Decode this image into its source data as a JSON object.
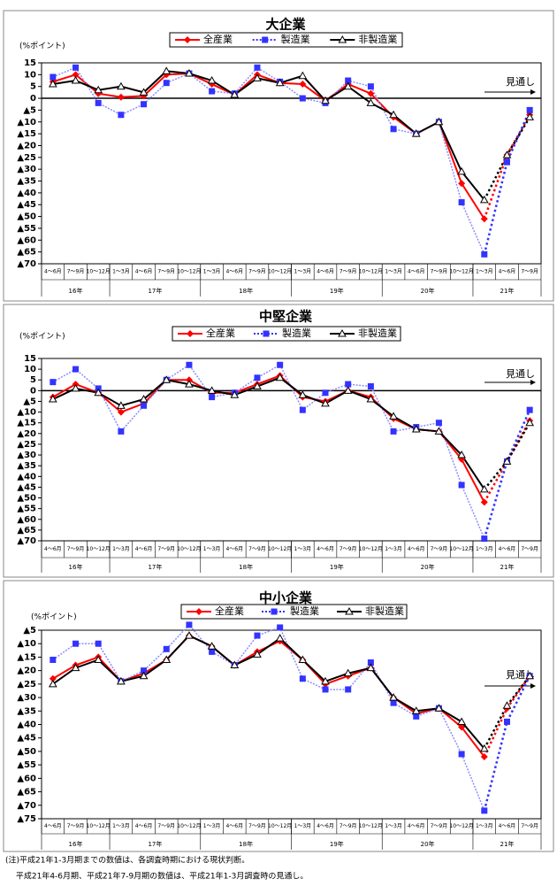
{
  "chart_data": [
    {
      "type": "line",
      "title": "大企業",
      "y_label": "(%ポイント)",
      "annotation": "見通し",
      "dashed_from_index": 19,
      "categories": [
        "4～6月",
        "7～9月",
        "10～12月",
        "1～3月",
        "4～6月",
        "7～9月",
        "10～12月",
        "1～3月",
        "4～6月",
        "7～9月",
        "10～12月",
        "1～3月",
        "4～6月",
        "7～9月",
        "10～12月",
        "1～3月",
        "4～6月",
        "7～9月",
        "10～12月",
        "1～3月",
        "4～6月",
        "7～9月"
      ],
      "year_groups": [
        {
          "label": "16年",
          "count": 3
        },
        {
          "label": "17年",
          "count": 4
        },
        {
          "label": "18年",
          "count": 4
        },
        {
          "label": "19年",
          "count": 4
        },
        {
          "label": "20年",
          "count": 4
        },
        {
          "label": "21年",
          "count": 3
        }
      ],
      "series": [
        {
          "name": "全産業",
          "color": "#ff0000",
          "marker": "diamond",
          "line_style": "solid",
          "values": [
            7,
            10,
            2,
            0.5,
            1,
            10,
            10.5,
            6,
            1.5,
            10,
            6.5,
            6,
            -1,
            6,
            2,
            -8,
            -15,
            -10,
            -36,
            -51,
            -24,
            -7
          ]
        },
        {
          "name": "製造業",
          "color": "#3333ff",
          "marker": "square",
          "line_style": "dotted",
          "values": [
            9,
            13,
            -2,
            -7,
            -2.5,
            6.5,
            10.5,
            3,
            2,
            13,
            7,
            0,
            -2,
            7.5,
            5,
            -13,
            -15,
            -10,
            -44,
            -66,
            -27,
            -5
          ]
        },
        {
          "name": "非製造業",
          "color": "#000000",
          "marker": "triangle",
          "line_style": "solid",
          "values": [
            6,
            7.5,
            3.5,
            5,
            2.5,
            11.5,
            10.5,
            7.5,
            1.5,
            8.5,
            6.5,
            9.5,
            -1,
            5,
            -2,
            -7,
            -15,
            -10,
            -31,
            -43,
            -24,
            -8
          ]
        }
      ],
      "ylim": [
        -70,
        15
      ],
      "yticks": [
        15,
        10,
        5,
        0,
        {
          "value": -5,
          "label": "▲5"
        },
        {
          "value": -10,
          "label": "▲10"
        },
        {
          "value": -15,
          "label": "▲15"
        },
        {
          "value": -20,
          "label": "▲20"
        },
        {
          "value": -25,
          "label": "▲25"
        },
        {
          "value": -30,
          "label": "▲30"
        },
        {
          "value": -35,
          "label": "▲35"
        },
        {
          "value": -40,
          "label": "▲40"
        },
        {
          "value": -45,
          "label": "▲45"
        },
        {
          "value": -50,
          "label": "▲50"
        },
        {
          "value": -55,
          "label": "▲55"
        },
        {
          "value": -60,
          "label": "▲60"
        },
        {
          "value": -65,
          "label": "▲65"
        },
        {
          "value": -70,
          "label": "▲70"
        }
      ]
    },
    {
      "type": "line",
      "title": "中堅企業",
      "y_label": "(%ポイント)",
      "annotation": "見通し",
      "dashed_from_index": 19,
      "categories": [
        "4～6月",
        "7～9月",
        "10～12月",
        "1～3月",
        "4～6月",
        "7～9月",
        "10～12月",
        "1～3月",
        "4～6月",
        "7～9月",
        "10～12月",
        "1～3月",
        "4～6月",
        "7～9月",
        "10～12月",
        "1～3月",
        "4～6月",
        "7～9月",
        "10～12月",
        "1～3月",
        "4～6月",
        "7～9月"
      ],
      "year_groups": [
        {
          "label": "16年",
          "count": 3
        },
        {
          "label": "17年",
          "count": 4
        },
        {
          "label": "18年",
          "count": 4
        },
        {
          "label": "19年",
          "count": 4
        },
        {
          "label": "20年",
          "count": 4
        },
        {
          "label": "21年",
          "count": 3
        }
      ],
      "series": [
        {
          "name": "全産業",
          "color": "#ff0000",
          "marker": "diamond",
          "line_style": "solid",
          "values": [
            -3,
            3,
            -1,
            -10,
            -6,
            5,
            5,
            -1,
            -1,
            3,
            7,
            -3,
            -5,
            0,
            -3,
            -13,
            -18,
            -19,
            -32,
            -52,
            -33,
            -14
          ]
        },
        {
          "name": "製造業",
          "color": "#3333ff",
          "marker": "square",
          "line_style": "dotted",
          "values": [
            4,
            10,
            1,
            -19,
            -7,
            5,
            12,
            -3,
            -1,
            6,
            12,
            -9,
            -1,
            3,
            2,
            -19,
            -17,
            -15,
            -44,
            -69,
            -33,
            -9
          ]
        },
        {
          "name": "非製造業",
          "color": "#000000",
          "marker": "triangle",
          "line_style": "solid",
          "values": [
            -4,
            1,
            -1,
            -7,
            -4,
            5,
            3,
            0,
            -2,
            2,
            6,
            -2,
            -6,
            0,
            -4,
            -12,
            -18,
            -19,
            -30,
            -46,
            -33,
            -15
          ]
        }
      ],
      "ylim": [
        -70,
        15
      ],
      "yticks": [
        15,
        10,
        5,
        0,
        {
          "value": -5,
          "label": "▲5"
        },
        {
          "value": -10,
          "label": "▲10"
        },
        {
          "value": -15,
          "label": "▲15"
        },
        {
          "value": -20,
          "label": "▲20"
        },
        {
          "value": -25,
          "label": "▲25"
        },
        {
          "value": -30,
          "label": "▲30"
        },
        {
          "value": -35,
          "label": "▲35"
        },
        {
          "value": -40,
          "label": "▲40"
        },
        {
          "value": -45,
          "label": "▲45"
        },
        {
          "value": -50,
          "label": "▲50"
        },
        {
          "value": -55,
          "label": "▲55"
        },
        {
          "value": -60,
          "label": "▲60"
        },
        {
          "value": -65,
          "label": "▲65"
        },
        {
          "value": -70,
          "label": "▲70"
        }
      ]
    },
    {
      "type": "line",
      "title": "中小企業",
      "y_label": "(%ポイント)",
      "annotation": "見通し",
      "dashed_from_index": 19,
      "categories": [
        "4～6月",
        "7～9月",
        "10～12月",
        "1～3月",
        "4～6月",
        "7～9月",
        "10～12月",
        "1～3月",
        "4～6月",
        "7～9月",
        "10～12月",
        "1～3月",
        "4～6月",
        "7～9月",
        "10～12月",
        "1～3月",
        "4～6月",
        "7～9月",
        "10～12月",
        "1～3月",
        "4～6月",
        "7～9月"
      ],
      "year_groups": [
        {
          "label": "16年",
          "count": 3
        },
        {
          "label": "17年",
          "count": 4
        },
        {
          "label": "18年",
          "count": 4
        },
        {
          "label": "19年",
          "count": 4
        },
        {
          "label": "20年",
          "count": 4
        },
        {
          "label": "21年",
          "count": 3
        }
      ],
      "series": [
        {
          "name": "全産業",
          "color": "#ff0000",
          "marker": "diamond",
          "line_style": "solid",
          "values": [
            -23,
            -18,
            -15,
            -24,
            -21,
            -16,
            -7,
            -11,
            -18,
            -13,
            -9,
            -16,
            -25,
            -22,
            -19,
            -30,
            -36,
            -34,
            -41,
            -52,
            -34,
            -22
          ]
        },
        {
          "name": "製造業",
          "color": "#3333ff",
          "marker": "square",
          "line_style": "dotted",
          "values": [
            -16,
            -10,
            -10,
            -24,
            -20,
            -12,
            -3,
            -13,
            -18,
            -7,
            -4,
            -23,
            -27,
            -27,
            -17,
            -32,
            -37,
            -34,
            -51,
            -72,
            -39,
            -22
          ]
        },
        {
          "name": "非製造業",
          "color": "#000000",
          "marker": "triangle",
          "line_style": "solid",
          "values": [
            -25,
            -19,
            -16,
            -24,
            -22,
            -16,
            -7,
            -11,
            -18,
            -14,
            -8,
            -16,
            -24,
            -21,
            -19,
            -30,
            -35,
            -34,
            -39,
            -49,
            -33,
            -22
          ]
        }
      ],
      "ylim": [
        -75,
        -5
      ],
      "yticks": [
        {
          "value": -5,
          "label": "▲5"
        },
        {
          "value": -10,
          "label": "▲10"
        },
        {
          "value": -15,
          "label": "▲15"
        },
        {
          "value": -20,
          "label": "▲20"
        },
        {
          "value": -25,
          "label": "▲25"
        },
        {
          "value": -30,
          "label": "▲30"
        },
        {
          "value": -35,
          "label": "▲35"
        },
        {
          "value": -40,
          "label": "▲40"
        },
        {
          "value": -45,
          "label": "▲45"
        },
        {
          "value": -50,
          "label": "▲50"
        },
        {
          "value": -55,
          "label": "▲55"
        },
        {
          "value": -60,
          "label": "▲60"
        },
        {
          "value": -65,
          "label": "▲65"
        },
        {
          "value": -70,
          "label": "▲70"
        },
        {
          "value": -75,
          "label": "▲75"
        }
      ]
    }
  ],
  "notes": [
    "(注)平成21年1-3月期までの数値は、各調査時期における現状判断。",
    "　 平成21年4-6月期、平成21年7-9月期の数値は、平成21年1-3月調査時の見通し。"
  ]
}
